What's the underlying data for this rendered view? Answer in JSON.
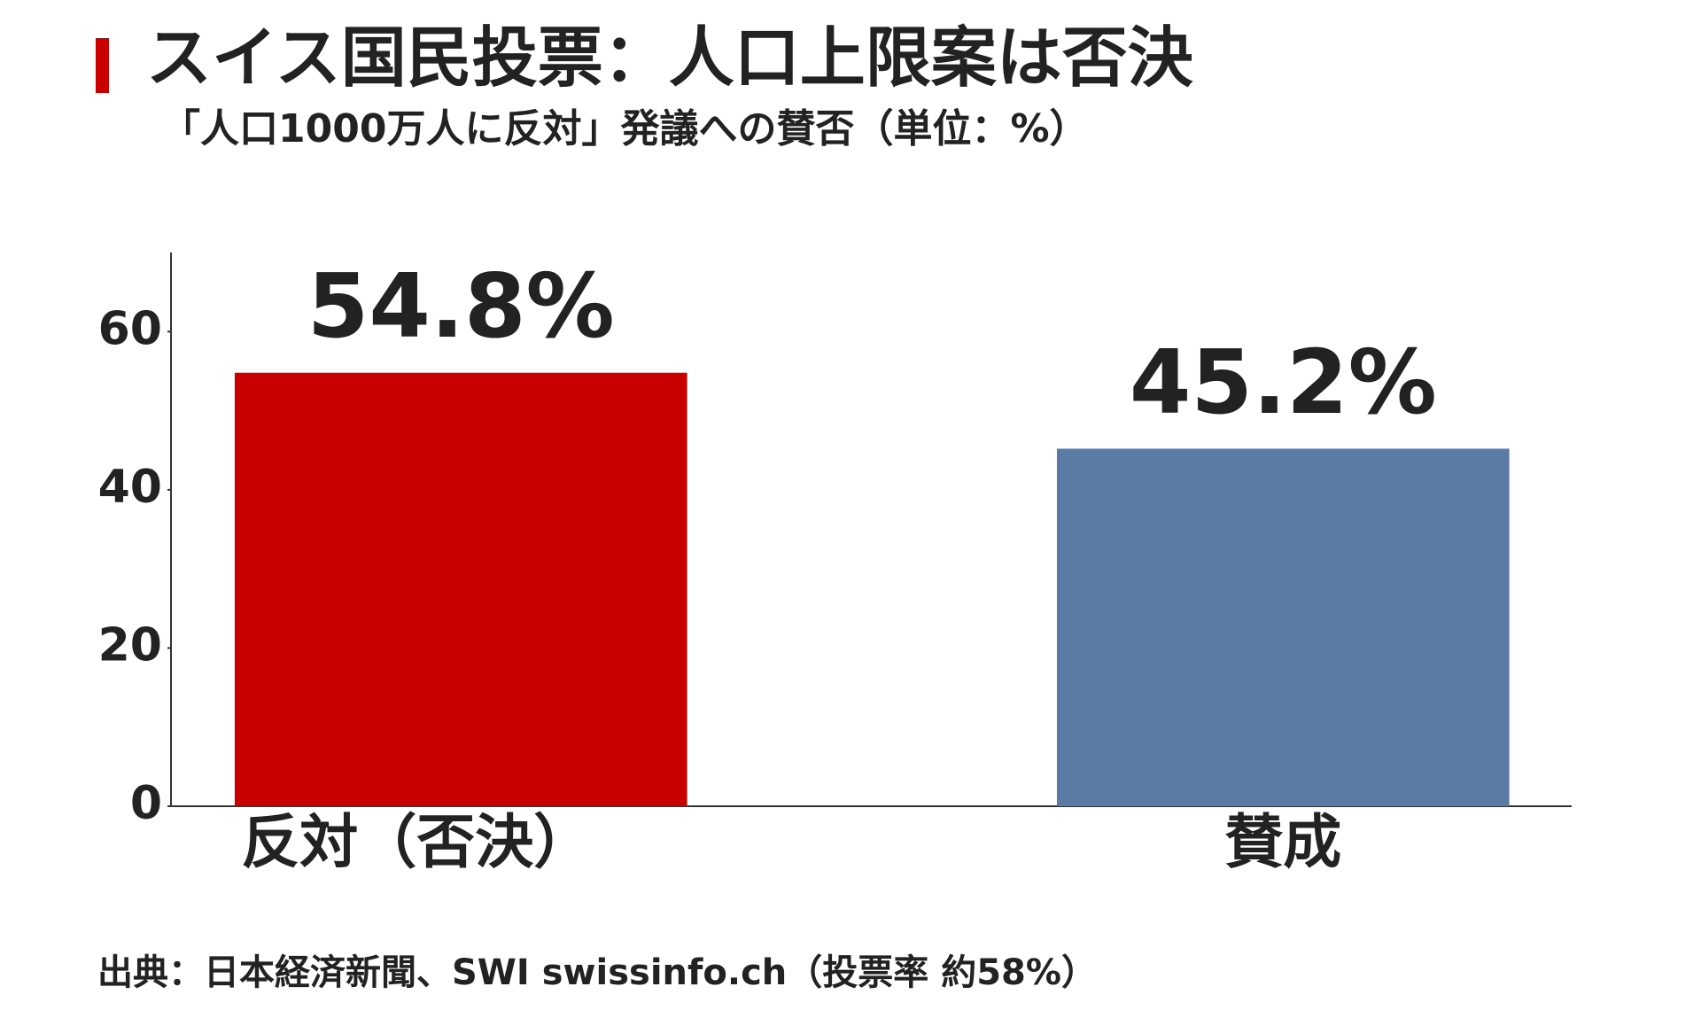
{
  "chart_data": {
    "type": "bar",
    "title": "スイス国民投票：人口上限案は否決",
    "subtitle": "「人口1000万人に反対」発議への賛否（単位：%）",
    "categories": [
      "反対（否決）",
      "賛成"
    ],
    "values": [
      54.8,
      45.2
    ],
    "value_labels": [
      "54.8%",
      "45.2%"
    ],
    "colors": [
      "#c80000",
      "#5b7ba5"
    ],
    "ylim": [
      0,
      70
    ],
    "yticks": [
      0,
      20,
      40,
      60
    ],
    "grid": false,
    "source": "出典：日本経済新聞、SWI swissinfo.ch（投票率 約58%）"
  }
}
